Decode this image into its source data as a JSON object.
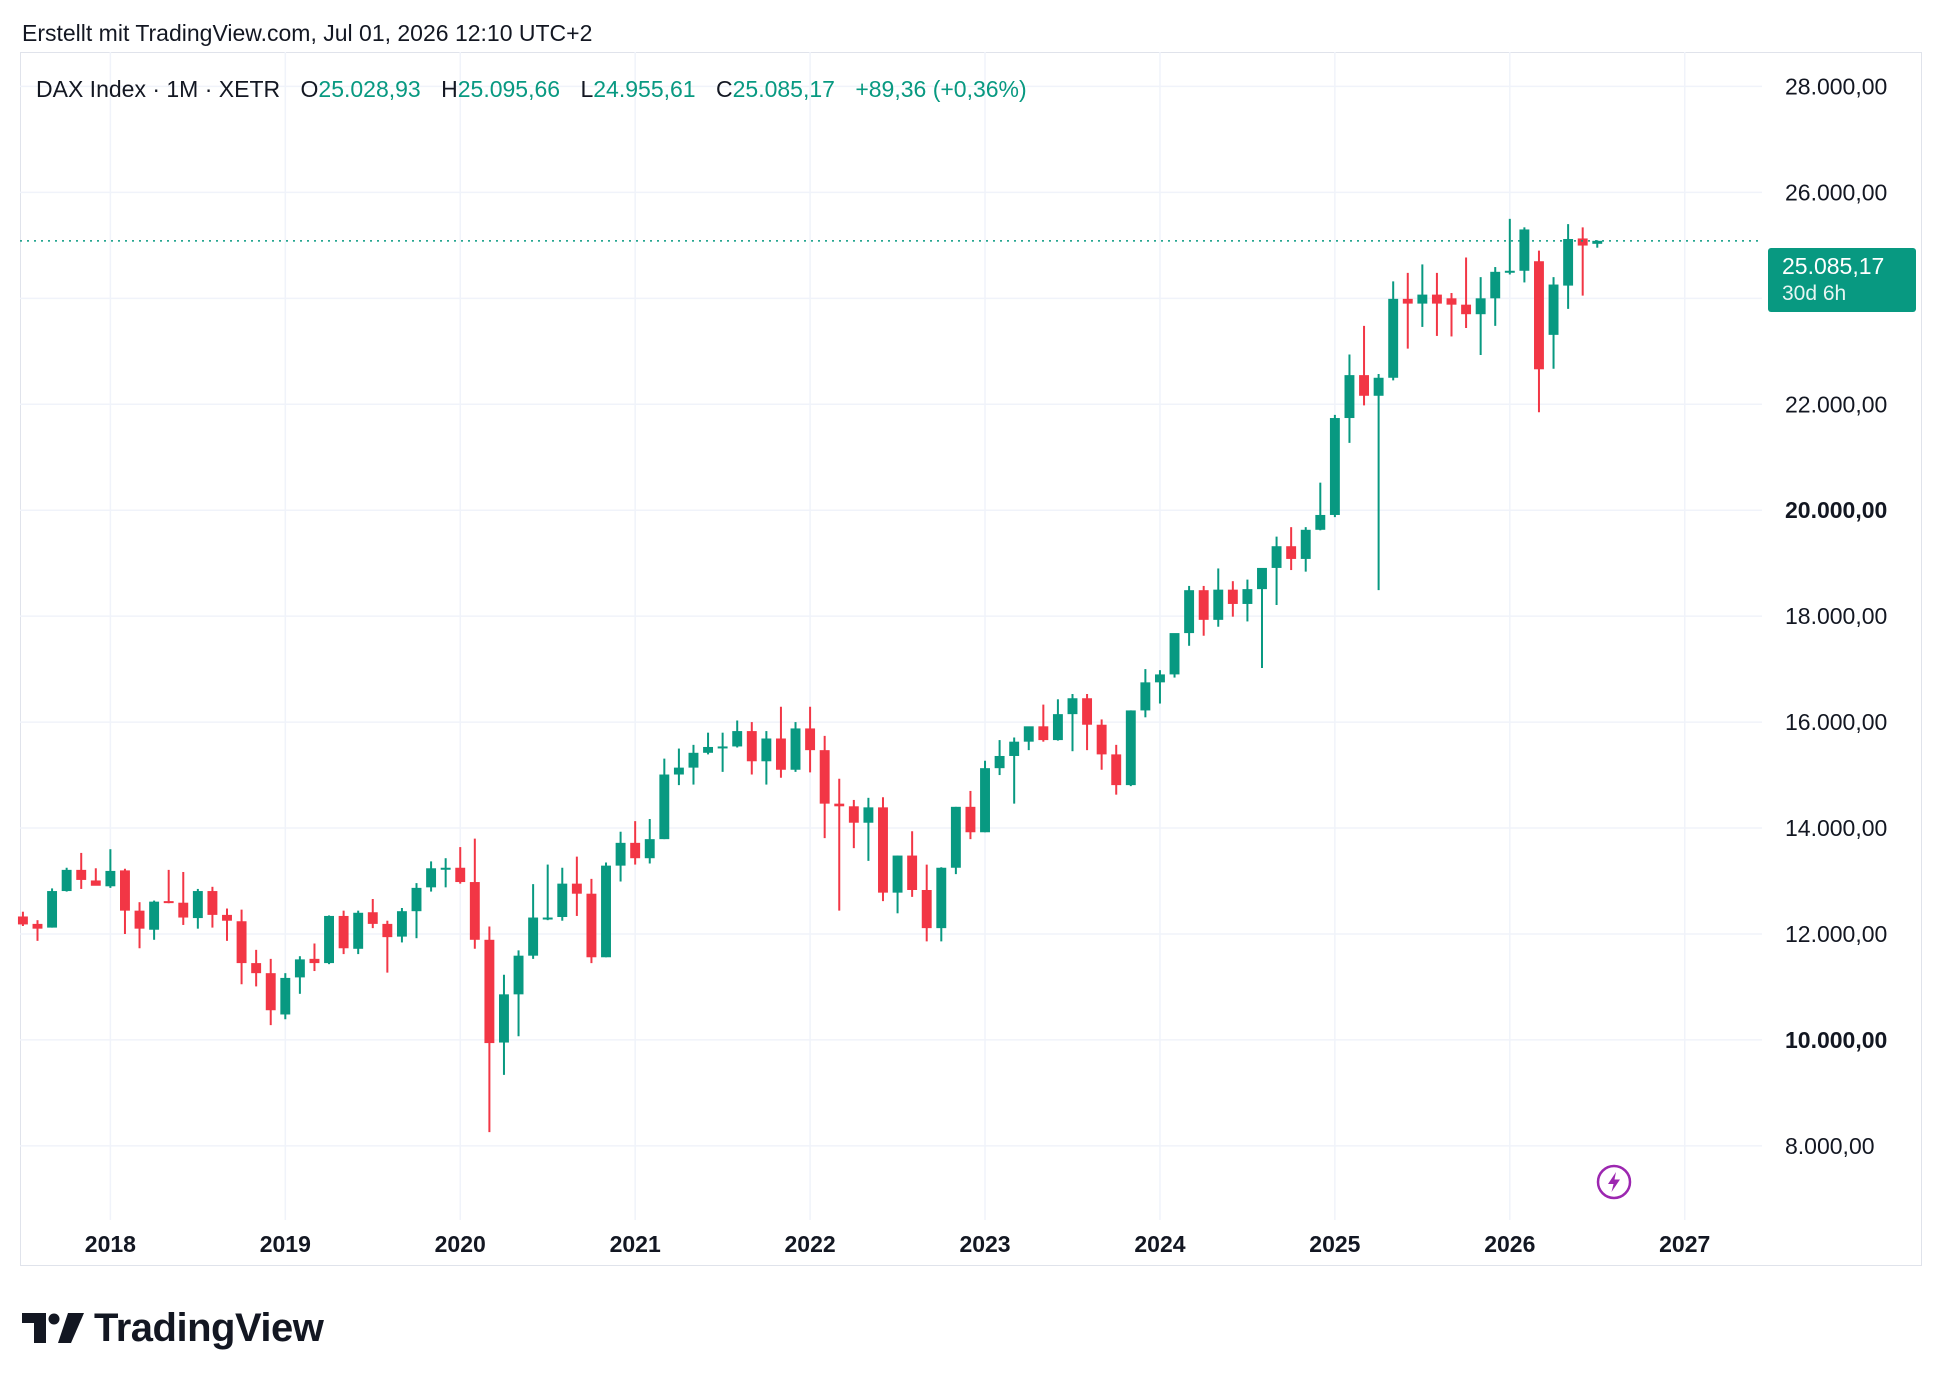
{
  "header": {
    "created_text": "Erstellt mit TradingView.com, Jul 01, 2026 12:10 UTC+2"
  },
  "legend": {
    "symbol": "DAX Index · 1M · XETR",
    "open_label": "O",
    "open": "25.028,93",
    "high_label": "H",
    "high": "25.095,66",
    "low_label": "L",
    "low": "24.955,61",
    "close_label": "C",
    "close": "25.085,17",
    "change": "+89,36 (+0,36%)"
  },
  "price_badge": {
    "price": "25.085,17",
    "countdown": "30d 6h"
  },
  "brand": {
    "name": "TradingView",
    "logo_icon": "tradingview-logo-icon"
  },
  "colors": {
    "up": "#089981",
    "down": "#f23645",
    "grid": "#f0f3fa",
    "text": "#131722",
    "flash_icon": "#9c27b0"
  },
  "icons": {
    "flash": "lightning-icon"
  },
  "chart_data": {
    "type": "candlestick",
    "interval": "monthly",
    "y_axis": {
      "ticks": [
        {
          "value": 8000,
          "label": "8.000,00",
          "bold": false
        },
        {
          "value": 10000,
          "label": "10.000,00",
          "bold": true
        },
        {
          "value": 12000,
          "label": "12.000,00",
          "bold": false
        },
        {
          "value": 14000,
          "label": "14.000,00",
          "bold": false
        },
        {
          "value": 16000,
          "label": "16.000,00",
          "bold": false
        },
        {
          "value": 18000,
          "label": "18.000,00",
          "bold": false
        },
        {
          "value": 20000,
          "label": "20.000,00",
          "bold": true
        },
        {
          "value": 22000,
          "label": "22.000,00",
          "bold": false
        },
        {
          "value": 24000,
          "label": "24.000,00",
          "bold": false
        },
        {
          "value": 26000,
          "label": "26.000,00",
          "bold": false
        },
        {
          "value": 28000,
          "label": "28.000,00",
          "bold": false
        }
      ],
      "range": [
        6600,
        28650
      ]
    },
    "x_axis": {
      "labels": [
        "2018",
        "2019",
        "2020",
        "2021",
        "2022",
        "2023",
        "2024",
        "2025",
        "2026",
        "2027"
      ],
      "start": "2017-07",
      "range_months": [
        -0.2,
        119.3
      ]
    },
    "last_price": 25085.17,
    "grid": true,
    "candles": [
      [
        "2017-07",
        12330,
        12420,
        12150,
        12180
      ],
      [
        "2017-08",
        12190,
        12260,
        11870,
        12100
      ],
      [
        "2017-09",
        12120,
        12860,
        12120,
        12810
      ],
      [
        "2017-10",
        12810,
        13250,
        12800,
        13210
      ],
      [
        "2017-11",
        13210,
        13530,
        12850,
        13020
      ],
      [
        "2017-12",
        13010,
        13240,
        12930,
        12910
      ],
      [
        "2018-01",
        12900,
        13600,
        12870,
        13190
      ],
      [
        "2018-02",
        13200,
        13230,
        12000,
        12440
      ],
      [
        "2018-03",
        12440,
        12600,
        11730,
        12100
      ],
      [
        "2018-04",
        12080,
        12630,
        11890,
        12610
      ],
      [
        "2018-05",
        12620,
        13210,
        12580,
        12600
      ],
      [
        "2018-06",
        12590,
        13170,
        12170,
        12310
      ],
      [
        "2018-07",
        12300,
        12850,
        12100,
        12810
      ],
      [
        "2018-08",
        12810,
        12890,
        12120,
        12360
      ],
      [
        "2018-09",
        12360,
        12480,
        11870,
        12250
      ],
      [
        "2018-10",
        12240,
        12460,
        11050,
        11450
      ],
      [
        "2018-11",
        11450,
        11700,
        11010,
        11260
      ],
      [
        "2018-12",
        11260,
        11530,
        10280,
        10560
      ],
      [
        "2019-01",
        10480,
        11260,
        10390,
        11170
      ],
      [
        "2019-02",
        11180,
        11580,
        10870,
        11520
      ],
      [
        "2019-03",
        11530,
        11820,
        11300,
        11450
      ],
      [
        "2019-04",
        11450,
        12350,
        11430,
        12340
      ],
      [
        "2019-05",
        12340,
        12440,
        11620,
        11730
      ],
      [
        "2019-06",
        11720,
        12440,
        11620,
        12400
      ],
      [
        "2019-07",
        12410,
        12660,
        12110,
        12190
      ],
      [
        "2019-08",
        12190,
        12250,
        11270,
        11940
      ],
      [
        "2019-09",
        11950,
        12490,
        11840,
        12430
      ],
      [
        "2019-10",
        12430,
        12960,
        11920,
        12870
      ],
      [
        "2019-11",
        12880,
        13370,
        12800,
        13240
      ],
      [
        "2019-12",
        13240,
        13430,
        12880,
        13250
      ],
      [
        "2020-01",
        13250,
        13640,
        12950,
        12980
      ],
      [
        "2020-02",
        12980,
        13800,
        11720,
        11890
      ],
      [
        "2020-03",
        11890,
        12140,
        8260,
        9940
      ],
      [
        "2020-04",
        9950,
        11230,
        9340,
        10860
      ],
      [
        "2020-05",
        10860,
        11690,
        10070,
        11590
      ],
      [
        "2020-06",
        11590,
        12940,
        11530,
        12310
      ],
      [
        "2020-07",
        12310,
        13310,
        12260,
        12310
      ],
      [
        "2020-08",
        12320,
        13250,
        12250,
        12950
      ],
      [
        "2020-09",
        12950,
        13460,
        12340,
        12760
      ],
      [
        "2020-10",
        12760,
        13040,
        11450,
        11560
      ],
      [
        "2020-11",
        11560,
        13350,
        11560,
        13290
      ],
      [
        "2020-12",
        13290,
        13930,
        12990,
        13720
      ],
      [
        "2021-01",
        13720,
        14130,
        13310,
        13430
      ],
      [
        "2021-02",
        13430,
        14170,
        13330,
        13790
      ],
      [
        "2021-03",
        13790,
        15310,
        13790,
        15010
      ],
      [
        "2021-04",
        15010,
        15500,
        14810,
        15140
      ],
      [
        "2021-05",
        15140,
        15570,
        14820,
        15420
      ],
      [
        "2021-06",
        15420,
        15800,
        15390,
        15530
      ],
      [
        "2021-07",
        15530,
        15800,
        15060,
        15540
      ],
      [
        "2021-08",
        15540,
        16030,
        15520,
        15830
      ],
      [
        "2021-09",
        15830,
        16000,
        15010,
        15260
      ],
      [
        "2021-10",
        15260,
        15830,
        14820,
        15690
      ],
      [
        "2021-11",
        15690,
        16290,
        14950,
        15100
      ],
      [
        "2021-12",
        15100,
        16000,
        15060,
        15880
      ],
      [
        "2022-01",
        15880,
        16290,
        15050,
        15470
      ],
      [
        "2022-02",
        15470,
        15740,
        13810,
        14460
      ],
      [
        "2022-03",
        14460,
        14930,
        12440,
        14410
      ],
      [
        "2022-04",
        14410,
        14530,
        13620,
        14100
      ],
      [
        "2022-05",
        14100,
        14570,
        13380,
        14390
      ],
      [
        "2022-06",
        14390,
        14580,
        12620,
        12780
      ],
      [
        "2022-07",
        12780,
        13480,
        12390,
        13480
      ],
      [
        "2022-08",
        13480,
        13940,
        12700,
        12830
      ],
      [
        "2022-09",
        12830,
        13310,
        11860,
        12110
      ],
      [
        "2022-10",
        12110,
        13260,
        11860,
        13250
      ],
      [
        "2022-11",
        13250,
        14400,
        13130,
        14400
      ],
      [
        "2022-12",
        14400,
        14700,
        13790,
        13920
      ],
      [
        "2023-01",
        13920,
        15270,
        13920,
        15130
      ],
      [
        "2023-02",
        15130,
        15660,
        15000,
        15360
      ],
      [
        "2023-03",
        15360,
        15710,
        14460,
        15630
      ],
      [
        "2023-04",
        15630,
        15900,
        15470,
        15920
      ],
      [
        "2023-05",
        15920,
        16330,
        15630,
        15660
      ],
      [
        "2023-06",
        15660,
        16430,
        15650,
        16150
      ],
      [
        "2023-07",
        16150,
        16530,
        15450,
        16450
      ],
      [
        "2023-08",
        16450,
        16530,
        15470,
        15950
      ],
      [
        "2023-09",
        15950,
        16050,
        15100,
        15390
      ],
      [
        "2023-10",
        15390,
        15570,
        14630,
        14810
      ],
      [
        "2023-11",
        14810,
        16220,
        14790,
        16220
      ],
      [
        "2023-12",
        16220,
        17000,
        16090,
        16750
      ],
      [
        "2024-01",
        16750,
        16980,
        16350,
        16900
      ],
      [
        "2024-02",
        16900,
        17500,
        16840,
        17680
      ],
      [
        "2024-03",
        17680,
        18570,
        17440,
        18490
      ],
      [
        "2024-04",
        18490,
        18570,
        17630,
        17930
      ],
      [
        "2024-05",
        17930,
        18900,
        17800,
        18500
      ],
      [
        "2024-06",
        18500,
        18660,
        17990,
        18230
      ],
      [
        "2024-07",
        18230,
        18690,
        17900,
        18510
      ],
      [
        "2024-08",
        18510,
        18870,
        17020,
        18910
      ],
      [
        "2024-09",
        18910,
        19500,
        18210,
        19320
      ],
      [
        "2024-10",
        19320,
        19680,
        18870,
        19080
      ],
      [
        "2024-11",
        19080,
        19680,
        18840,
        19630
      ],
      [
        "2024-12",
        19630,
        20520,
        19620,
        19910
      ],
      [
        "2025-01",
        19910,
        21800,
        19870,
        21740
      ],
      [
        "2025-02",
        21740,
        22940,
        21270,
        22550
      ],
      [
        "2025-03",
        22550,
        23480,
        21980,
        22160
      ],
      [
        "2025-04",
        22160,
        22570,
        18490,
        22500
      ],
      [
        "2025-05",
        22500,
        24320,
        22450,
        23990
      ],
      [
        "2025-06",
        23990,
        24480,
        23050,
        23900
      ],
      [
        "2025-07",
        23900,
        24640,
        23460,
        24070
      ],
      [
        "2025-08",
        24070,
        24480,
        23290,
        23900
      ],
      [
        "2025-09",
        24000,
        24100,
        23280,
        23880
      ],
      [
        "2025-10",
        23880,
        24770,
        23440,
        23700
      ],
      [
        "2025-11",
        23700,
        24400,
        22930,
        24000
      ],
      [
        "2025-12",
        24000,
        24590,
        23480,
        24500
      ],
      [
        "2026-01",
        24500,
        25500,
        24450,
        24520
      ],
      [
        "2026-02",
        24520,
        25340,
        24300,
        25300
      ],
      [
        "2026-03",
        24700,
        24900,
        21850,
        22660
      ],
      [
        "2026-04",
        23310,
        24400,
        22670,
        24260
      ],
      [
        "2026-05",
        24240,
        25400,
        23800,
        25120
      ],
      [
        "2026-06",
        25130,
        25340,
        24050,
        24996
      ],
      [
        "2026-07",
        25028.93,
        25095.66,
        24955.61,
        25085.17
      ]
    ]
  }
}
